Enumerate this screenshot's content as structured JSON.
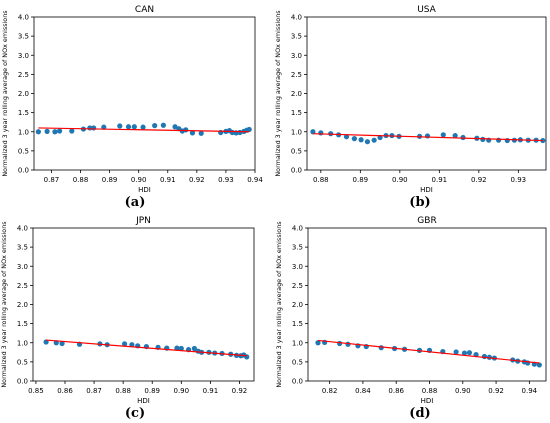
{
  "chart_data": [
    {
      "type": "scatter",
      "panel_label": "(a)",
      "title": "CAN",
      "xlabel": "HDI",
      "ylabel": "Normalized 3 year rolling average of NOx emissions",
      "xlim": [
        0.864,
        0.94
      ],
      "ylim": [
        0,
        4.0
      ],
      "xticks": [
        0.87,
        0.88,
        0.89,
        0.9,
        0.91,
        0.92,
        0.93,
        0.94
      ],
      "xtick_labels": [
        "0.87",
        "0.88",
        "0.89",
        "0.90",
        "0.91",
        "0.92",
        "0.93",
        "0.94"
      ],
      "yticks": [
        0,
        0.5,
        1.0,
        1.5,
        2.0,
        2.5,
        3.0,
        3.5,
        4.0
      ],
      "ytick_labels": [
        "0.0",
        "0.5",
        "1.0",
        "1.5",
        "2.0",
        "2.5",
        "3.0",
        "3.5",
        "4.0"
      ],
      "points": [
        [
          0.8655,
          1.0
        ],
        [
          0.8685,
          1.01
        ],
        [
          0.8712,
          1.0
        ],
        [
          0.8728,
          1.02
        ],
        [
          0.877,
          1.02
        ],
        [
          0.881,
          1.07
        ],
        [
          0.8832,
          1.1
        ],
        [
          0.8845,
          1.1
        ],
        [
          0.888,
          1.12
        ],
        [
          0.8935,
          1.15
        ],
        [
          0.8965,
          1.13
        ],
        [
          0.8985,
          1.13
        ],
        [
          0.9015,
          1.12
        ],
        [
          0.9055,
          1.16
        ],
        [
          0.9085,
          1.17
        ],
        [
          0.9125,
          1.13
        ],
        [
          0.9138,
          1.08
        ],
        [
          0.915,
          1.02
        ],
        [
          0.9162,
          1.05
        ],
        [
          0.9185,
          0.97
        ],
        [
          0.9215,
          0.96
        ],
        [
          0.9282,
          0.98
        ],
        [
          0.93,
          1.01
        ],
        [
          0.9312,
          1.03
        ],
        [
          0.9322,
          0.98
        ],
        [
          0.9335,
          0.97
        ],
        [
          0.9348,
          0.98
        ],
        [
          0.9362,
          1.01
        ],
        [
          0.9372,
          1.04
        ],
        [
          0.938,
          1.06
        ]
      ],
      "trendline": [
        [
          0.8655,
          1.1
        ],
        [
          0.938,
          1.0
        ]
      ],
      "marker_color": "#1f77b4",
      "line_color": "#ff0000",
      "grid": false
    },
    {
      "type": "scatter",
      "panel_label": "(b)",
      "title": "USA",
      "xlabel": "HDI",
      "ylabel": "Normalized 3 year rolling average of NOx emissions",
      "xlim": [
        0.8765,
        0.937
      ],
      "ylim": [
        0,
        4.0
      ],
      "xticks": [
        0.88,
        0.89,
        0.9,
        0.91,
        0.92,
        0.93
      ],
      "xtick_labels": [
        "0.88",
        "0.89",
        "0.90",
        "0.91",
        "0.92",
        "0.93"
      ],
      "yticks": [
        0,
        0.5,
        1.0,
        1.5,
        2.0,
        2.5,
        3.0,
        3.5,
        4.0
      ],
      "ytick_labels": [
        "0.0",
        "0.5",
        "1.0",
        "1.5",
        "2.0",
        "2.5",
        "3.0",
        "3.5",
        "4.0"
      ],
      "points": [
        [
          0.878,
          1.0
        ],
        [
          0.88,
          0.97
        ],
        [
          0.8825,
          0.95
        ],
        [
          0.8845,
          0.92
        ],
        [
          0.8865,
          0.87
        ],
        [
          0.8885,
          0.82
        ],
        [
          0.8902,
          0.79
        ],
        [
          0.8918,
          0.74
        ],
        [
          0.8935,
          0.78
        ],
        [
          0.895,
          0.85
        ],
        [
          0.8965,
          0.9
        ],
        [
          0.898,
          0.9
        ],
        [
          0.8998,
          0.88
        ],
        [
          0.905,
          0.88
        ],
        [
          0.907,
          0.89
        ],
        [
          0.911,
          0.92
        ],
        [
          0.914,
          0.9
        ],
        [
          0.916,
          0.85
        ],
        [
          0.9195,
          0.83
        ],
        [
          0.921,
          0.8
        ],
        [
          0.9225,
          0.78
        ],
        [
          0.925,
          0.78
        ],
        [
          0.9272,
          0.77
        ],
        [
          0.929,
          0.78
        ],
        [
          0.9305,
          0.79
        ],
        [
          0.9325,
          0.78
        ],
        [
          0.9345,
          0.78
        ],
        [
          0.9362,
          0.77
        ]
      ],
      "trendline": [
        [
          0.878,
          0.95
        ],
        [
          0.9362,
          0.77
        ]
      ],
      "marker_color": "#1f77b4",
      "line_color": "#ff0000",
      "grid": false
    },
    {
      "type": "scatter",
      "panel_label": "(c)",
      "title": "JPN",
      "xlabel": "HDI",
      "ylabel": "Normalized 3 year rolling average of NOx emissions",
      "xlim": [
        0.849,
        0.925
      ],
      "ylim": [
        0,
        4.0
      ],
      "xticks": [
        0.85,
        0.86,
        0.87,
        0.88,
        0.89,
        0.9,
        0.91,
        0.92
      ],
      "xtick_labels": [
        "0.85",
        "0.86",
        "0.87",
        "0.88",
        "0.89",
        "0.90",
        "0.91",
        "0.92"
      ],
      "yticks": [
        0,
        0.5,
        1.0,
        1.5,
        2.0,
        2.5,
        3.0,
        3.5,
        4.0
      ],
      "ytick_labels": [
        "0.0",
        "0.5",
        "1.0",
        "1.5",
        "2.0",
        "2.5",
        "3.0",
        "3.5",
        "4.0"
      ],
      "points": [
        [
          0.8535,
          1.02
        ],
        [
          0.857,
          1.0
        ],
        [
          0.859,
          0.98
        ],
        [
          0.865,
          0.96
        ],
        [
          0.872,
          0.97
        ],
        [
          0.8745,
          0.95
        ],
        [
          0.8805,
          0.97
        ],
        [
          0.883,
          0.95
        ],
        [
          0.885,
          0.92
        ],
        [
          0.888,
          0.9
        ],
        [
          0.892,
          0.88
        ],
        [
          0.895,
          0.86
        ],
        [
          0.8985,
          0.86
        ],
        [
          0.9,
          0.85
        ],
        [
          0.9025,
          0.82
        ],
        [
          0.9045,
          0.85
        ],
        [
          0.9058,
          0.78
        ],
        [
          0.907,
          0.75
        ],
        [
          0.9095,
          0.75
        ],
        [
          0.9115,
          0.73
        ],
        [
          0.914,
          0.72
        ],
        [
          0.917,
          0.7
        ],
        [
          0.919,
          0.67
        ],
        [
          0.9205,
          0.66
        ],
        [
          0.9215,
          0.68
        ],
        [
          0.9225,
          0.63
        ]
      ],
      "trendline": [
        [
          0.8535,
          1.07
        ],
        [
          0.9225,
          0.66
        ]
      ],
      "marker_color": "#1f77b4",
      "line_color": "#ff0000",
      "grid": false
    },
    {
      "type": "scatter",
      "panel_label": "(d)",
      "title": "GBR",
      "xlabel": "HDI",
      "ylabel": "Normalized 3 year rolling average of NOx emissions",
      "xlim": [
        0.807,
        0.95
      ],
      "ylim": [
        0,
        4.0
      ],
      "xticks": [
        0.82,
        0.84,
        0.86,
        0.88,
        0.9,
        0.92,
        0.94
      ],
      "xtick_labels": [
        "0.82",
        "0.84",
        "0.86",
        "0.88",
        "0.90",
        "0.92",
        "0.94"
      ],
      "yticks": [
        0,
        0.5,
        1.0,
        1.5,
        2.0,
        2.5,
        3.0,
        3.5,
        4.0
      ],
      "ytick_labels": [
        "0.0",
        "0.5",
        "1.0",
        "1.5",
        "2.0",
        "2.5",
        "3.0",
        "3.5",
        "4.0"
      ],
      "points": [
        [
          0.813,
          1.0
        ],
        [
          0.817,
          1.01
        ],
        [
          0.826,
          0.98
        ],
        [
          0.831,
          0.96
        ],
        [
          0.837,
          0.92
        ],
        [
          0.842,
          0.9
        ],
        [
          0.851,
          0.87
        ],
        [
          0.859,
          0.85
        ],
        [
          0.865,
          0.83
        ],
        [
          0.874,
          0.8
        ],
        [
          0.88,
          0.8
        ],
        [
          0.888,
          0.77
        ],
        [
          0.896,
          0.76
        ],
        [
          0.901,
          0.73
        ],
        [
          0.904,
          0.74
        ],
        [
          0.908,
          0.69
        ],
        [
          0.913,
          0.64
        ],
        [
          0.916,
          0.62
        ],
        [
          0.919,
          0.6
        ],
        [
          0.93,
          0.55
        ],
        [
          0.933,
          0.52
        ],
        [
          0.937,
          0.5
        ],
        [
          0.939,
          0.47
        ],
        [
          0.943,
          0.44
        ],
        [
          0.946,
          0.42
        ]
      ],
      "trendline": [
        [
          0.813,
          1.06
        ],
        [
          0.946,
          0.47
        ]
      ],
      "marker_color": "#1f77b4",
      "line_color": "#ff0000",
      "grid": false
    }
  ]
}
